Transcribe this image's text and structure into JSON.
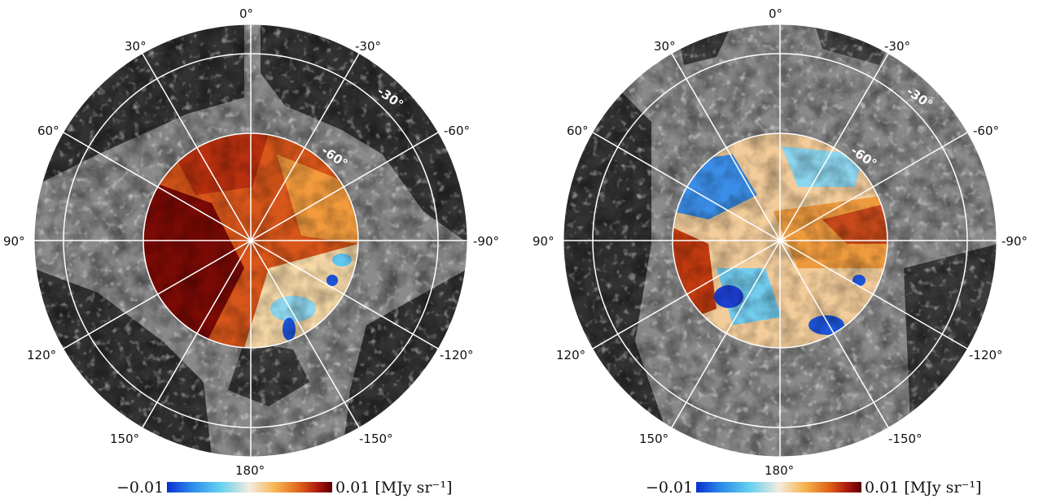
{
  "panels": [
    {
      "name": "left",
      "longitude_labels": [
        "0°",
        "30°",
        "-30°",
        "60°",
        "-60°",
        "90°",
        "-90°",
        "120°",
        "-120°",
        "150°",
        "-150°",
        "180°"
      ],
      "latitude_labels": [
        "-30°",
        "-60°"
      ],
      "colorbar": {
        "min_label": "−0.01",
        "max_label": "0.01 [MJy sr⁻¹]"
      }
    },
    {
      "name": "right",
      "longitude_labels": [
        "0°",
        "30°",
        "-30°",
        "60°",
        "-60°",
        "90°",
        "-90°",
        "120°",
        "-120°",
        "150°",
        "-150°",
        "180°"
      ],
      "latitude_labels": [
        "-30°",
        "-60°"
      ],
      "colorbar": {
        "min_label": "−0.01",
        "max_label": "0.01 [MJy sr⁻¹]"
      }
    }
  ],
  "colors": {
    "background_dark": "#333333",
    "background_mid": "#888888",
    "background_light": "#bdbdbd",
    "grid": "#ffffff",
    "cmap": [
      "#0a2ecf",
      "#2b8bea",
      "#62d0f0",
      "#f4ecdf",
      "#f6b34e",
      "#e0641a",
      "#a8170e",
      "#5a0000"
    ]
  }
}
